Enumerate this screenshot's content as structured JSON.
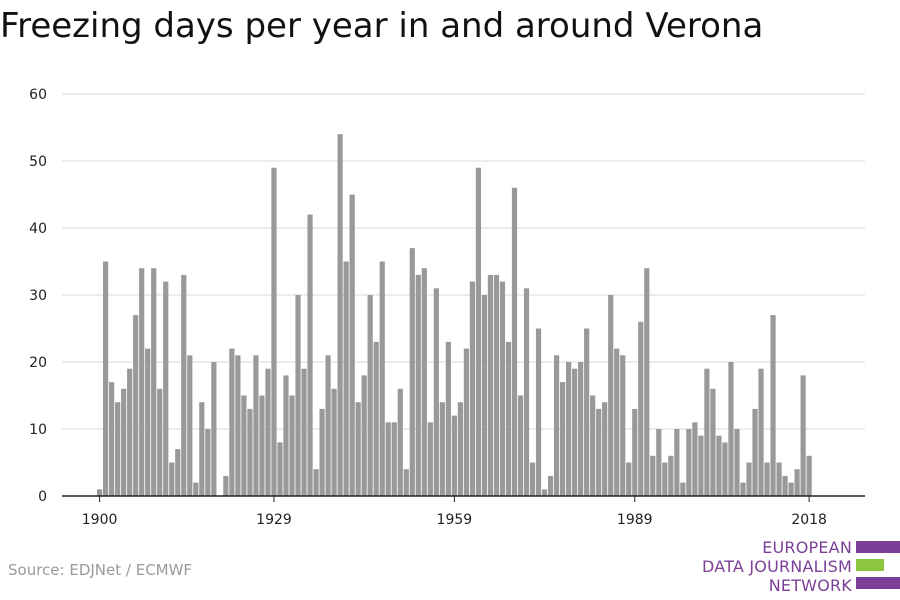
{
  "chart_data": {
    "type": "bar",
    "title": "Freezing days per year in and around Verona",
    "xlabel": "",
    "ylabel": "",
    "ylim": [
      0,
      60
    ],
    "yticks": [
      0,
      10,
      20,
      30,
      40,
      50,
      60
    ],
    "xticks": [
      1900,
      1929,
      1959,
      1989,
      2018
    ],
    "x_start": 1900,
    "grid": true,
    "bar_color": "#999999",
    "series": [
      {
        "values": [
          1,
          35,
          17,
          14,
          16,
          19,
          27,
          34,
          22,
          34,
          16,
          32,
          5,
          7,
          33,
          21,
          2,
          14,
          10,
          20,
          0,
          3,
          22,
          21,
          15,
          13,
          21,
          15,
          19,
          49,
          8,
          18,
          15,
          30,
          19,
          42,
          4,
          13,
          21,
          16,
          54,
          35,
          45,
          14,
          18,
          30,
          23,
          35,
          11,
          11,
          16,
          4,
          37,
          33,
          34,
          11,
          31,
          14,
          23,
          12,
          14,
          22,
          32,
          49,
          30,
          33,
          33,
          32,
          23,
          46,
          15,
          31,
          5,
          25,
          1,
          3,
          21,
          17,
          20,
          19,
          20,
          25,
          15,
          13,
          14,
          30,
          22,
          21,
          5,
          13,
          26,
          34,
          6,
          10,
          5,
          6,
          10,
          2,
          10,
          11,
          9,
          19,
          16,
          9,
          8,
          20,
          10,
          2,
          5,
          13,
          19,
          5,
          27,
          5,
          3,
          2,
          4,
          18,
          6
        ]
      }
    ]
  },
  "footer": {
    "source": "Source: EDJNet / ECMWF"
  },
  "logo": {
    "line1": "EUROPEAN",
    "line2": "DATA JOURNALISM",
    "line3": "NETWORK",
    "purple": "#7b3f98",
    "green": "#8cc63f"
  }
}
